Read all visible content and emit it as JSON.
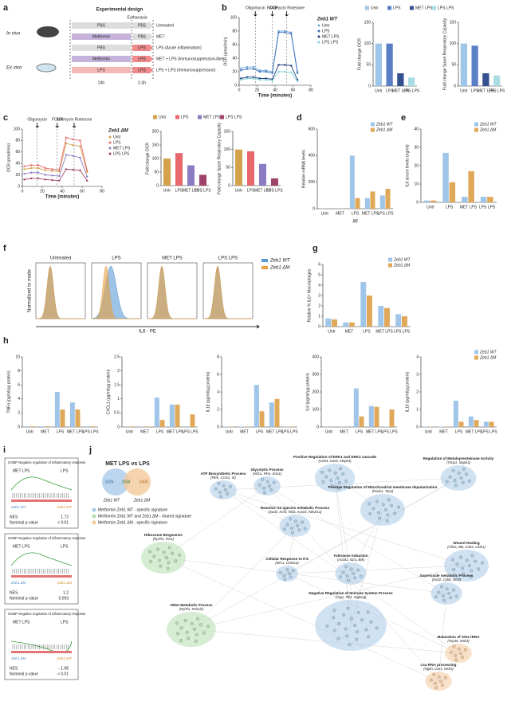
{
  "panels": [
    "a",
    "b",
    "c",
    "d",
    "e",
    "f",
    "g",
    "h",
    "i",
    "j"
  ],
  "design": {
    "title": "Experimental design",
    "euthanasia": "Euthanasia",
    "in_vivo": "In vivo",
    "ex_vivo": "Ex vivo",
    "t1": "24h",
    "t2": "2-3h",
    "rows": [
      {
        "first": "PBS",
        "second": "PBS",
        "label": "Untreated"
      },
      {
        "first": "Metformin",
        "second": "PBS",
        "label": "MET"
      },
      {
        "first": "PBS",
        "second": "LPS",
        "label": "LPS (Acute inflammation)"
      },
      {
        "first": "Metformin",
        "second": "LPS",
        "label": "MET + LPS (Immunosuppression-like)"
      },
      {
        "first": "LPS",
        "second": "LPS",
        "label": "LPS + LPS (Immunosuppression)"
      }
    ]
  },
  "chart_data": [
    {
      "type": "line",
      "ylabel": "OCR (pmol/min)",
      "xlabel": "Time (minutes)",
      "legend_title": "Zeb1 WT",
      "xlim": [
        0,
        80
      ],
      "xticks": [
        0,
        20,
        40,
        60,
        80
      ],
      "ylim": [
        0,
        100
      ],
      "yticks": [
        0,
        20,
        40,
        60,
        80,
        100
      ],
      "x": [
        2,
        9,
        16,
        23,
        30,
        37,
        44,
        51,
        58,
        65
      ],
      "annotations": [
        {
          "label": "Oligomycin",
          "x": 18
        },
        {
          "label": "FCCP",
          "x": 37
        },
        {
          "label": "Antimycin Rotenone",
          "x": 53
        }
      ],
      "series": [
        {
          "name": "Untr",
          "color": "#6fa8dc",
          "values": [
            25,
            27,
            27,
            22,
            22,
            20,
            80,
            80,
            78,
            20
          ]
        },
        {
          "name": "LPS",
          "color": "#3d6fb6",
          "values": [
            22,
            24,
            24,
            20,
            20,
            18,
            78,
            78,
            76,
            18
          ]
        },
        {
          "name": "MET LPS",
          "color": "#1f3d7a",
          "values": [
            10,
            12,
            12,
            10,
            10,
            9,
            30,
            30,
            29,
            8
          ]
        },
        {
          "name": "LPS LPS",
          "color": "#7fd3d8",
          "values": [
            8,
            10,
            10,
            8,
            8,
            7,
            20,
            20,
            19,
            6
          ]
        }
      ]
    },
    {
      "type": "bar",
      "ylabel": "Fold change OCR",
      "legend": [
        "Untr",
        "LPS",
        "MET LPS",
        "LPS LPS"
      ],
      "categories": [
        "Untr",
        "LPS",
        "MET LPS",
        "LPS LPS"
      ],
      "values": [
        100,
        100,
        30,
        20
      ],
      "colors": [
        "#9fc5e8",
        "#5b7fc4",
        "#35508f",
        "#a9dde3"
      ],
      "ylim": [
        0,
        150
      ],
      "yticks": [
        0,
        50,
        100,
        150
      ]
    },
    {
      "type": "bar",
      "ylabel": "Fold change Spare Respiratory Capacity",
      "categories": [
        "Untr",
        "LPS",
        "MET LPS",
        "LPS LPS"
      ],
      "values": [
        100,
        95,
        30,
        25
      ],
      "colors": [
        "#9fc5e8",
        "#5b7fc4",
        "#35508f",
        "#a9dde3"
      ],
      "ylim": [
        0,
        150
      ],
      "yticks": [
        0,
        50,
        100,
        150
      ]
    },
    {
      "type": "line",
      "ylabel": "OCR (pmol/min)",
      "xlabel": "Time (minutes)",
      "legend_title": "Zeb1 ΔM",
      "xlim": [
        0,
        80
      ],
      "xticks": [
        0,
        20,
        40,
        60,
        80
      ],
      "ylim": [
        0,
        100
      ],
      "yticks": [
        0,
        20,
        40,
        60,
        80,
        100
      ],
      "x": [
        2,
        9,
        16,
        23,
        30,
        37,
        44,
        51,
        58,
        65
      ],
      "annotations": [
        {
          "label": "Oligomycin",
          "x": 15
        },
        {
          "label": "FCCP",
          "x": 35
        },
        {
          "label": "Antimycin Rotenone",
          "x": 52
        }
      ],
      "series": [
        {
          "name": "Untr",
          "color": "#d4a24c",
          "values": [
            30,
            32,
            32,
            28,
            27,
            26,
            75,
            72,
            70,
            25
          ]
        },
        {
          "name": "LPS",
          "color": "#e8676b",
          "values": [
            35,
            37,
            37,
            32,
            30,
            29,
            85,
            82,
            80,
            28
          ]
        },
        {
          "name": "MET LPS",
          "color": "#8b7bc2",
          "values": [
            22,
            24,
            24,
            20,
            19,
            18,
            55,
            53,
            50,
            17
          ]
        },
        {
          "name": "LPS LPS",
          "color": "#a0436a",
          "values": [
            12,
            14,
            14,
            12,
            11,
            10,
            30,
            29,
            28,
            10
          ]
        }
      ]
    },
    {
      "type": "bar",
      "ylabel": "Fold change OCR",
      "legend": [
        "Untr",
        "LPS",
        "MET LPS",
        "LPS LPS"
      ],
      "categories": [
        "Untr",
        "LPS",
        "MET LPS",
        "LPS LPS"
      ],
      "values": [
        100,
        120,
        75,
        40
      ],
      "colors": [
        "#d4a24c",
        "#e8676b",
        "#8b7bc2",
        "#a0436a"
      ],
      "ylim": [
        0,
        200
      ],
      "yticks": [
        0,
        50,
        100,
        150,
        200
      ]
    },
    {
      "type": "bar",
      "ylabel": "Fold change Spare Respiratory Capacity",
      "categories": [
        "Untr",
        "LPS",
        "MET LPS",
        "LPS LPS"
      ],
      "values": [
        100,
        95,
        60,
        20
      ],
      "colors": [
        "#d4a24c",
        "#e8676b",
        "#8b7bc2",
        "#a0436a"
      ],
      "ylim": [
        0,
        150
      ],
      "yticks": [
        0,
        50,
        100,
        150
      ]
    },
    {
      "type": "bar",
      "ylabel": "Relative mRNA levels",
      "xlabel": "Il6",
      "categories": [
        "Untr",
        "MET",
        "LPS",
        "MET LPS",
        "LPS LPS"
      ],
      "ylim": [
        0,
        600
      ],
      "yticks": [
        0,
        200,
        400,
        600
      ],
      "series": [
        {
          "name": "Zeb1 WT",
          "color": "#9fc5e8",
          "values": [
            1,
            1,
            400,
            80,
            100
          ]
        },
        {
          "name": "Zeb1 ΔM",
          "color": "#e0a95a",
          "values": [
            1,
            1,
            80,
            130,
            150
          ]
        }
      ]
    },
    {
      "type": "bar",
      "ylabel": "IL6 serum levels (ng/ml)",
      "categories": [
        "Untr",
        "LPS",
        "MET LPS",
        "LPS LPS"
      ],
      "ylim": [
        0,
        40
      ],
      "yticks": [
        0,
        10,
        20,
        30,
        40
      ],
      "series": [
        {
          "name": "Zeb1 WT",
          "color": "#9fc5e8",
          "values": [
            1,
            27,
            3,
            3
          ]
        },
        {
          "name": "Zeb1 ΔM",
          "color": "#e0a95a",
          "values": [
            1,
            11,
            17,
            3
          ]
        }
      ]
    },
    {
      "type": "bar",
      "ylabel": "Relative % IL6+ Macrophages",
      "categories": [
        "Untr",
        "MET",
        "LPS",
        "MET LPS",
        "LPS LPS"
      ],
      "ylim": [
        0,
        6
      ],
      "yticks": [
        0,
        1,
        2,
        3,
        4,
        5,
        6
      ],
      "series": [
        {
          "name": "Zeb1 WT",
          "color": "#9fc5e8",
          "values": [
            0.8,
            0.4,
            4.3,
            2,
            1.2
          ]
        },
        {
          "name": "Zeb1 ΔM",
          "color": "#e0a95a",
          "values": [
            0.7,
            0.4,
            3,
            1.8,
            1
          ]
        }
      ]
    },
    {
      "type": "bar",
      "ylabel": "TNFα (pg/ml/µg protein)",
      "categories": [
        "Untr",
        "MET",
        "LPS",
        "MET LPS",
        "LPS LPS"
      ],
      "ylim": [
        0,
        10
      ],
      "yticks": [
        0,
        2,
        4,
        6,
        8,
        10
      ],
      "series": [
        {
          "name": "Zeb1 WT",
          "color": "#9fc5e8",
          "values": [
            0.1,
            0.1,
            5,
            3.5,
            0.1
          ]
        },
        {
          "name": "Zeb1 ΔM",
          "color": "#e0a95a",
          "values": [
            0.1,
            0.1,
            2.5,
            2.5,
            0.1
          ]
        }
      ]
    },
    {
      "type": "bar",
      "ylabel": "CXCL1 (pg/ml/µg protein)",
      "categories": [
        "Untr",
        "MET",
        "LPS",
        "MET LPS",
        "LPS LPS"
      ],
      "ylim": [
        0,
        2.5
      ],
      "yticks": [
        0,
        0.5,
        1,
        1.5,
        2,
        2.5
      ],
      "series": [
        {
          "name": "Zeb1 WT",
          "color": "#9fc5e8",
          "values": [
            0.02,
            0.02,
            1.05,
            0.8,
            0.02
          ]
        },
        {
          "name": "Zeb1 ΔM",
          "color": "#e0a95a",
          "values": [
            0.02,
            0.02,
            0.25,
            0.8,
            0.45
          ]
        }
      ]
    },
    {
      "type": "bar",
      "ylabel": "IL1β (pg/ml/µg protein)",
      "categories": [
        "Untr",
        "MET",
        "LPS",
        "MET LPS",
        "LPS LPS"
      ],
      "ylim": [
        0,
        8
      ],
      "yticks": [
        0,
        2,
        4,
        6,
        8
      ],
      "series": [
        {
          "name": "Zeb1 WT",
          "color": "#9fc5e8",
          "values": [
            0.05,
            0.05,
            4.8,
            2.8,
            0.05
          ]
        },
        {
          "name": "Zeb1 ΔM",
          "color": "#e0a95a",
          "values": [
            0.05,
            0.05,
            1.8,
            3.2,
            0.05
          ]
        }
      ]
    },
    {
      "type": "bar",
      "ylabel": "IL6 (pg/ml/µg protein)",
      "categories": [
        "Untr",
        "MET",
        "LPS",
        "MET LPS",
        "LPS LPS"
      ],
      "ylim": [
        0,
        400
      ],
      "yticks": [
        0,
        100,
        200,
        300,
        400
      ],
      "series": [
        {
          "name": "Zeb1 WT",
          "color": "#9fc5e8",
          "values": [
            1,
            1,
            220,
            120,
            2
          ]
        },
        {
          "name": "Zeb1 ΔM",
          "color": "#e0a95a",
          "values": [
            1,
            1,
            60,
            115,
            100
          ]
        }
      ]
    },
    {
      "type": "bar",
      "ylabel": "IL10 (pg/ml/µg protein)",
      "legend": true,
      "categories": [
        "Untr",
        "MET",
        "LPS",
        "MET LPS",
        "LPS LPS"
      ],
      "ylim": [
        0,
        4
      ],
      "yticks": [
        0,
        1,
        2,
        3,
        4
      ],
      "series": [
        {
          "name": "Zeb1 WT",
          "color": "#9fc5e8",
          "values": [
            0.02,
            0.02,
            1.5,
            0.6,
            0.3
          ]
        },
        {
          "name": "Zeb1 ΔM",
          "color": "#e0a95a",
          "values": [
            0.02,
            0.02,
            0.3,
            0.4,
            0.3
          ]
        }
      ]
    }
  ],
  "flow": {
    "ylabel": "Normalized to mode",
    "xlabel": "IL6 - PE",
    "titles": [
      "Untreated",
      "LPS",
      "MET  LPS",
      "LPS  LPS"
    ],
    "legend": [
      "Zeb1 WT",
      "Zeb1 ΔM"
    ]
  },
  "gsea": [
    {
      "title": "GOBP Negative regulation of inflammatory response",
      "left": "MET LPS",
      "right": "LPS",
      "a": "Zeb1 WT",
      "b": "Zeb1 WT",
      "nes": "NES",
      "nes_value": "1.72",
      "p": "Nominal p value",
      "p_value": "< 0.01"
    },
    {
      "title": "GOBP Negative regulation of inflammatory response",
      "left": "MET LPS",
      "right": "LPS",
      "a": "Zeb1 ΔM",
      "b": "Zeb1 ΔM",
      "nes": "NES",
      "nes_value": "1.2",
      "p": "Nominal p value",
      "p_value": "0.093"
    },
    {
      "title": "GOBP Negative regulation of inflammatory response",
      "left": "MET LPS",
      "right": "LPS",
      "a": "Zeb1 ΔM",
      "b": "Zeb1 WT",
      "nes": "NES",
      "nes_value": "- 1.98",
      "p": "Nominal p value",
      "p_value": "< 0.01"
    }
  ],
  "venn": {
    "title": "MET LPS vs LPS",
    "left": "1626",
    "middle": "2034",
    "right": "1666",
    "left_label": "Zeb1 WT",
    "right_label": "Zeb1 ΔM",
    "legend": [
      {
        "label": "Metformin Zeb1 WT - specific signature",
        "color": "#a9cbe8"
      },
      {
        "label": "Metformin Zeb1 WT and Zeb1 ΔM - shared signature",
        "color": "#b5dcae"
      },
      {
        "label": "Metformin Zeb1 ΔM - specific signature",
        "color": "#f2c99a"
      }
    ]
  },
  "network": [
    {
      "label": "Positive Regulation of ERK1 and ERK2 cascade",
      "genes": "(Cd44, Gas6, Mapk3)",
      "color": "#a9cbe8"
    },
    {
      "label": "Regulation of Metalopreoteinase Activity",
      "genes": "(Timp1, Mapk3)",
      "color": "#a9cbe8"
    },
    {
      "label": "Glycolytic Process",
      "genes": "(Hif1a, Pkm, Eno1)",
      "color": "#a9cbe8"
    },
    {
      "label": "ATP Biosynthetic Process",
      "genes": "(Pkm, COX2, I4)",
      "color": "#a9cbe8"
    },
    {
      "label": "Positive Regulation of Mitochondrial membrane depolarization",
      "genes": "(Rack1, Tspo)",
      "color": "#a9cbe8"
    },
    {
      "label": "Reactive O2 species metabolic Process",
      "genes": "(Sod2, Ncf4, Ncf2, Acod1, Nfe2l1a)",
      "color": "#a9cbe8"
    },
    {
      "label": "Ribosome Biogenesis",
      "genes": "(Rpl7l1, Rrs1)",
      "color": "#b5dcae"
    },
    {
      "label": "Cellular Response to Il-6",
      "genes": "(Mrc1, Csnk1a)",
      "color": "#a9cbe8"
    },
    {
      "label": "Tolerance Induction",
      "genes": "(Acod1, Il2ra, Btk)",
      "color": "#a9cbe8"
    },
    {
      "label": "Wound Healing",
      "genes": "(Hif1a, Btk, Cd44, Cbln1)",
      "color": "#a9cbe8"
    },
    {
      "label": "Superoxide metabolic Process",
      "genes": "(Sod2, Cybb, Ncf4)",
      "color": "#a9cbe8"
    },
    {
      "label": "rRNA Metabolic Process",
      "genes": "(Rpl7l1, Rsl1d1)",
      "color": "#b5dcae"
    },
    {
      "label": "Negative Regulation of Immune System Process",
      "genes": "(Arg1, Ifitl1, Siglecg)",
      "color": "#a9cbe8"
    },
    {
      "label": "Maturation of SSU-rRNA",
      "genes": "(Rrp36, Wdr3)",
      "color": "#f2c99a"
    },
    {
      "label": "Lsu RNA processing",
      "genes": "(Ngdn, Gar1, Wdr3)",
      "color": "#f2c99a"
    }
  ]
}
